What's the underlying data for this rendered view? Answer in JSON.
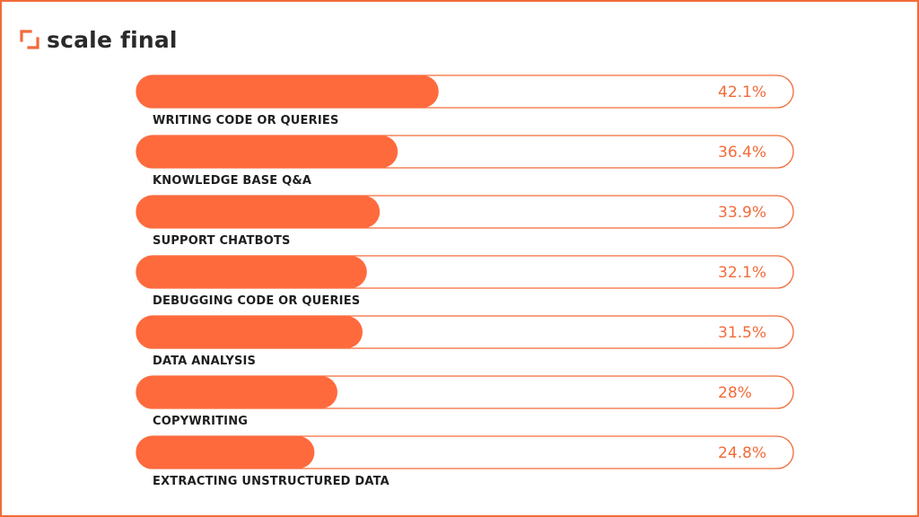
{
  "brand": {
    "name": "scale final",
    "accent_color": "#f26b3a",
    "icon": "corner-bracket-logo-icon"
  },
  "colors": {
    "bar_fill": "#ff6a3d",
    "track_stroke": "#f26b3a",
    "label_text": "#1e1e1e",
    "value_text": "#f26b3a",
    "frame": "#f26b3a"
  },
  "chart_data": {
    "type": "bar",
    "orientation": "horizontal",
    "title": "",
    "xlabel": "",
    "ylabel": "",
    "xlim": [
      0,
      100
    ],
    "grid": false,
    "legend": "none",
    "categories": [
      "WRITING CODE OR QUERIES",
      "KNOWLEDGE BASE Q&A",
      "SUPPORT CHATBOTS",
      "DEBUGGING CODE OR QUERIES",
      "DATA ANALYSIS",
      "COPYWRITING",
      "EXTRACTING UNSTRUCTURED DATA"
    ],
    "values": [
      42.1,
      36.4,
      33.9,
      32.1,
      31.5,
      28,
      24.8
    ],
    "value_labels": [
      "42.1%",
      "36.4%",
      "33.9%",
      "32.1%",
      "31.5%",
      "28%",
      "24.8%"
    ]
  }
}
